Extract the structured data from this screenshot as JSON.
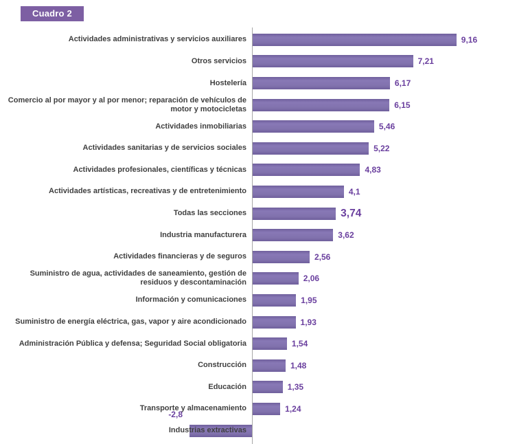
{
  "badge": {
    "label": "Cuadro 2"
  },
  "colors": {
    "badge_bg": "#7d5fa3",
    "bar_color": "#7c6bad",
    "value_color": "#6a3f9e",
    "label_color": "#3f3f3f",
    "axis_color": "#a6a6a6"
  },
  "chart_data": {
    "type": "bar",
    "orientation": "horizontal",
    "title": "Cuadro 2",
    "xlabel": "",
    "ylabel": "",
    "xlim": [
      -3,
      10
    ],
    "grid": false,
    "legend": false,
    "value_decimal_separator": ",",
    "categories": [
      "Actividades administrativas y servicios auxiliares",
      "Otros servicios",
      "Hostelería",
      "Comercio al por mayor y al por menor; reparación de vehículos de motor y motocicletas",
      "Actividades inmobiliarias",
      "Actividades sanitarias y de servicios sociales",
      "Actividades profesionales, científicas y técnicas",
      "Actividades artísticas, recreativas y de entretenimiento",
      "Todas las secciones",
      "Industria manufacturera",
      "Actividades financieras y de seguros",
      "Suministro de agua, actividades de saneamiento, gestión de residuos y descontaminación",
      "Información y comunicaciones",
      "Suministro de energía eléctrica, gas, vapor y aire acondicionado",
      "Administración Pública y defensa; Seguridad Social obligatoria",
      "Construcción",
      "Educación",
      "Transporte y almacenamiento",
      "Industrias extractivas"
    ],
    "values": [
      9.16,
      7.21,
      6.17,
      6.15,
      5.46,
      5.22,
      4.83,
      4.1,
      3.74,
      3.62,
      2.56,
      2.06,
      1.95,
      1.93,
      1.54,
      1.48,
      1.35,
      1.24,
      -2.8
    ],
    "value_labels": [
      "9,16",
      "7,21",
      "6,17",
      "6,15",
      "5,46",
      "5,22",
      "4,83",
      "4,1",
      "3,74",
      "3,62",
      "2,56",
      "2,06",
      "1,95",
      "1,93",
      "1,54",
      "1,48",
      "1,35",
      "1,24",
      "-2,8"
    ],
    "emphasized_category": "Todas las secciones",
    "emphasized_index": 8
  }
}
